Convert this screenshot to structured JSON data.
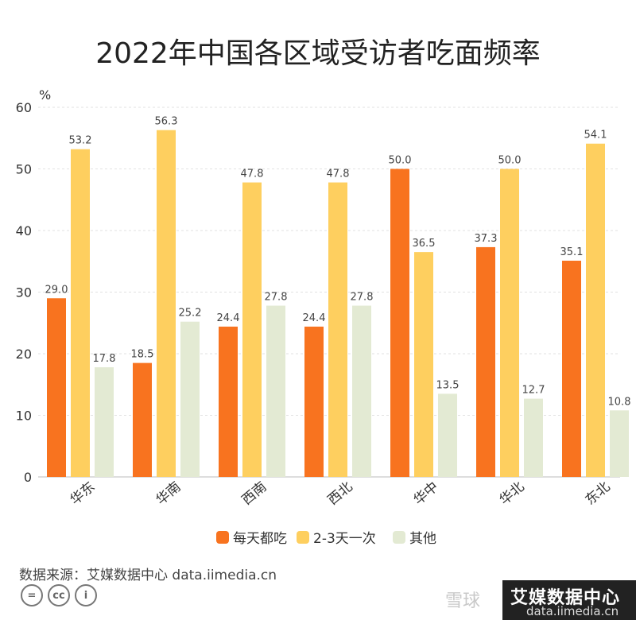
{
  "title": "2022年中国各区域受访者吃面频率",
  "source": "数据来源：艾媒数据中心 data.iimedia.cn",
  "watermark": {
    "left": "雪球",
    "logo": "艾媒数据中心",
    "logo_sub": "data.iimedia.cn"
  },
  "chart_data": {
    "type": "bar",
    "ylabel": "%",
    "ylim": [
      0,
      60
    ],
    "yticks": [
      0,
      10,
      20,
      30,
      40,
      50,
      60
    ],
    "grid": true,
    "legend_position": "bottom",
    "categories": [
      "华东",
      "华南",
      "西南",
      "西北",
      "华中",
      "华北",
      "东北"
    ],
    "series": [
      {
        "name": "每天都吃",
        "color": "#F8731F",
        "values": [
          29.0,
          18.5,
          24.4,
          24.4,
          50.0,
          37.3,
          35.1
        ]
      },
      {
        "name": "2-3天一次",
        "color": "#FECF5F",
        "values": [
          53.2,
          56.3,
          47.8,
          47.8,
          36.5,
          50.0,
          54.1
        ]
      },
      {
        "name": "其他",
        "color": "#E3EAD3",
        "values": [
          17.8,
          25.2,
          27.8,
          27.8,
          13.5,
          12.7,
          10.8
        ]
      }
    ]
  }
}
